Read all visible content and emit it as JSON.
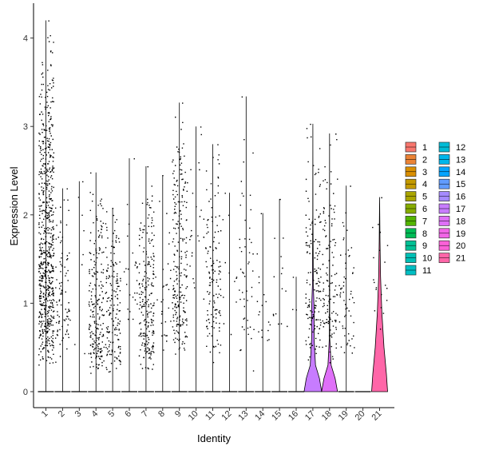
{
  "chart_data": {
    "type": "violin",
    "xlabel": "Identity",
    "ylabel": "Expression Level",
    "ylim": [
      -0.2,
      4.25
    ],
    "yticks": [
      0,
      1,
      2,
      3,
      4
    ],
    "categories": [
      "1",
      "2",
      "3",
      "4",
      "5",
      "6",
      "7",
      "8",
      "9",
      "10",
      "11",
      "12",
      "13",
      "14",
      "15",
      "16",
      "17",
      "18",
      "19",
      "20",
      "21"
    ],
    "colors": [
      "#F8766D",
      "#EB8335",
      "#DA8F00",
      "#C49A00",
      "#A9A400",
      "#86AC00",
      "#53B400",
      "#00BC56",
      "#00C094",
      "#00BFB5",
      "#00BFC4",
      "#00BCD6",
      "#00B6EB",
      "#06A4FF",
      "#619CFF",
      "#A58AFF",
      "#C77CFF",
      "#DF70F8",
      "#F265E7",
      "#FB61D7",
      "#FF66A8"
    ],
    "max_values": [
      4.2,
      2.3,
      2.38,
      2.48,
      2.08,
      2.64,
      2.55,
      2.45,
      3.27,
      3.0,
      2.8,
      2.25,
      3.34,
      2.02,
      2.18,
      1.3,
      3.03,
      2.92,
      2.33,
      0.0,
      2.2
    ],
    "point_counts": [
      700,
      90,
      8,
      220,
      170,
      25,
      220,
      30,
      230,
      25,
      130,
      12,
      50,
      18,
      15,
      3,
      150,
      130,
      60,
      0,
      20
    ],
    "nonzero_min": [
      0.27,
      0.27,
      0.3,
      0.18,
      0.18,
      0.5,
      0.22,
      0.25,
      0.35,
      0.6,
      0.25,
      0.5,
      0.2,
      0.4,
      0.4,
      0.8,
      0.3,
      0.3,
      0.3,
      0.0,
      0.4
    ],
    "nonzero_mode": [
      0.8,
      0.8,
      1.0,
      0.45,
      0.55,
      1.2,
      0.45,
      1.0,
      0.8,
      1.5,
      0.8,
      1.5,
      0.7,
      0.8,
      1.0,
      1.0,
      0.8,
      0.8,
      0.6,
      0.0,
      1.0
    ],
    "violin_shapes": {
      "17": {
        "max_halfwidth_px": 11,
        "shape": [
          [
            0,
            1
          ],
          [
            0.15,
            0.75
          ],
          [
            0.3,
            0.3
          ],
          [
            0.6,
            0.14
          ],
          [
            0.9,
            0.16
          ],
          [
            1.2,
            0.05
          ],
          [
            1.5,
            0.04
          ],
          [
            2.0,
            0.01
          ],
          [
            3.03,
            0
          ]
        ]
      },
      "18": {
        "max_halfwidth_px": 10,
        "shape": [
          [
            0,
            1
          ],
          [
            0.15,
            0.7
          ],
          [
            0.3,
            0.2
          ],
          [
            0.6,
            0.03
          ],
          [
            1.5,
            0.01
          ],
          [
            2.92,
            0
          ]
        ]
      },
      "21": {
        "max_halfwidth_px": 10,
        "shape": [
          [
            0,
            1
          ],
          [
            0.2,
            0.85
          ],
          [
            0.5,
            0.55
          ],
          [
            0.9,
            0.28
          ],
          [
            1.3,
            0.12
          ],
          [
            1.7,
            0.05
          ],
          [
            2.2,
            0
          ]
        ]
      }
    },
    "legend": {
      "position": "right",
      "columns": 2
    },
    "grid": false
  }
}
